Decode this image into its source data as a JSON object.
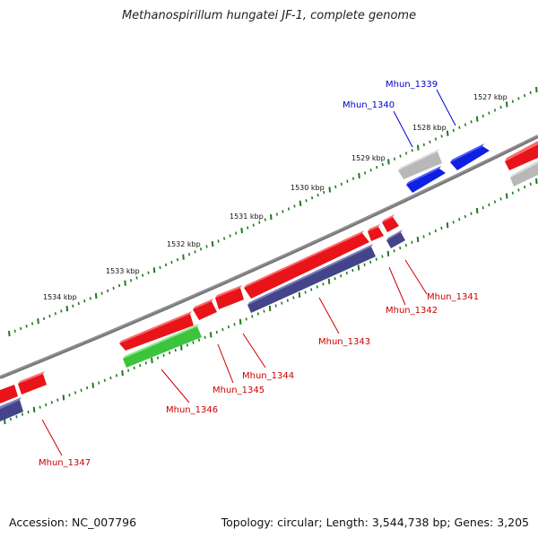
{
  "title": "Methanospirillum hungatei JF-1, complete genome",
  "footer": {
    "accession": "Accession: NC_007796",
    "topology": "Topology: circular; Length: 3,544,738 bp; Genes: 3,205"
  },
  "colors": {
    "backbone": "#7a7a7a",
    "tick": "#1f7a1f",
    "gene_red": "#e8141a",
    "gene_blue": "#1020e0",
    "gene_navy": "#44448a",
    "gene_grey": "#b8b8b8",
    "gene_green": "#3cc43c",
    "label_red": "#cc0000",
    "label_blue": "#0000cc"
  },
  "scale_labels": [
    "1527 kbp",
    "1528 kbp",
    "1529 kbp",
    "1530 kbp",
    "1531 kbp",
    "1532 kbp",
    "1533 kbp",
    "1534 kbp"
  ],
  "gene_labels": [
    {
      "text": "Mhun_1339",
      "color": "blue"
    },
    {
      "text": "Mhun_1340",
      "color": "blue"
    },
    {
      "text": "Mhun_1341",
      "color": "red"
    },
    {
      "text": "Mhun_1342",
      "color": "red"
    },
    {
      "text": "Mhun_1343",
      "color": "red"
    },
    {
      "text": "Mhun_1344",
      "color": "red"
    },
    {
      "text": "Mhun_1345",
      "color": "red"
    },
    {
      "text": "Mhun_1346",
      "color": "red"
    },
    {
      "text": "Mhun_1347",
      "color": "red"
    }
  ]
}
